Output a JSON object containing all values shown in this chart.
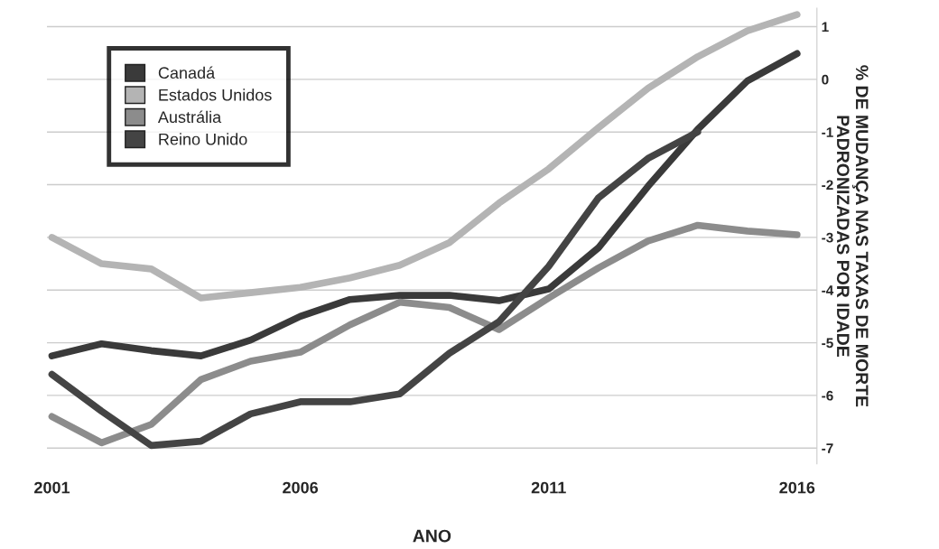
{
  "chart_data": {
    "type": "line",
    "xlabel": "ANO",
    "ylabel": "% DE MUDANÇA NAS TAXAS DE MORTE PADRONIZADAS POR IDADE",
    "series": [
      {
        "name": "Canadá",
        "color": "#3a3a3a",
        "x": [
          2001,
          2002,
          2003,
          2004,
          2005,
          2006,
          2007,
          2008,
          2009,
          2010,
          2011,
          2012,
          2013,
          2014,
          2015,
          2016
        ],
        "values": [
          -5.25,
          -5.02,
          -5.15,
          -5.25,
          -4.95,
          -4.5,
          -4.18,
          -4.1,
          -4.1,
          -4.2,
          -3.98,
          -3.2,
          -2.03,
          -0.95,
          -0.03,
          0.49
        ]
      },
      {
        "name": "Estados Unidos",
        "color": "#b4b4b4",
        "x": [
          2001,
          2002,
          2003,
          2004,
          2005,
          2006,
          2007,
          2008,
          2009,
          2010,
          2011,
          2012,
          2013,
          2014,
          2015,
          2016
        ],
        "values": [
          -3.0,
          -3.5,
          -3.6,
          -4.15,
          -4.05,
          -3.95,
          -3.77,
          -3.53,
          -3.1,
          -2.35,
          -1.7,
          -0.92,
          -0.17,
          0.43,
          0.92,
          1.23
        ]
      },
      {
        "name": "Austrália",
        "color": "#8c8c8c",
        "x": [
          2001,
          2002,
          2003,
          2004,
          2005,
          2006,
          2007,
          2008,
          2009,
          2010,
          2011,
          2012,
          2013,
          2014,
          2015,
          2016
        ],
        "values": [
          -6.4,
          -6.9,
          -6.55,
          -5.7,
          -5.35,
          -5.18,
          -4.66,
          -4.23,
          -4.33,
          -4.75,
          -4.15,
          -3.58,
          -3.07,
          -2.77,
          -2.88,
          -2.95
        ]
      },
      {
        "name": "Reino Unido",
        "color": "#444444",
        "x": [
          2001,
          2002,
          2003,
          2004,
          2005,
          2006,
          2007,
          2008,
          2009,
          2010,
          2011,
          2012,
          2013,
          2014
        ],
        "values": [
          -5.6,
          -6.3,
          -6.95,
          -6.87,
          -6.35,
          -6.12,
          -6.12,
          -5.97,
          -5.2,
          -4.6,
          -3.55,
          -2.25,
          -1.5,
          -1.0
        ]
      }
    ],
    "xlim": [
      2000.9,
      2016.4
    ],
    "xticks": [
      2001,
      2006,
      2011,
      2016
    ],
    "ylim": [
      -7.3,
      1.35
    ],
    "yticks": [
      {
        "value": 1,
        "label": "1"
      },
      {
        "value": 0,
        "label": "0"
      },
      {
        "value": -1,
        "label": "-1"
      },
      {
        "value": -2,
        "label": "-2"
      },
      {
        "value": -3,
        "label": "-3"
      },
      {
        "value": -4,
        "label": "-4"
      },
      {
        "value": -5,
        "label": "-5"
      },
      {
        "value": -6,
        "label": "-6"
      },
      {
        "value": -7,
        "label": "-7"
      }
    ],
    "grid": "y",
    "legend": "top left",
    "line_style": "solid",
    "marker": "none"
  }
}
